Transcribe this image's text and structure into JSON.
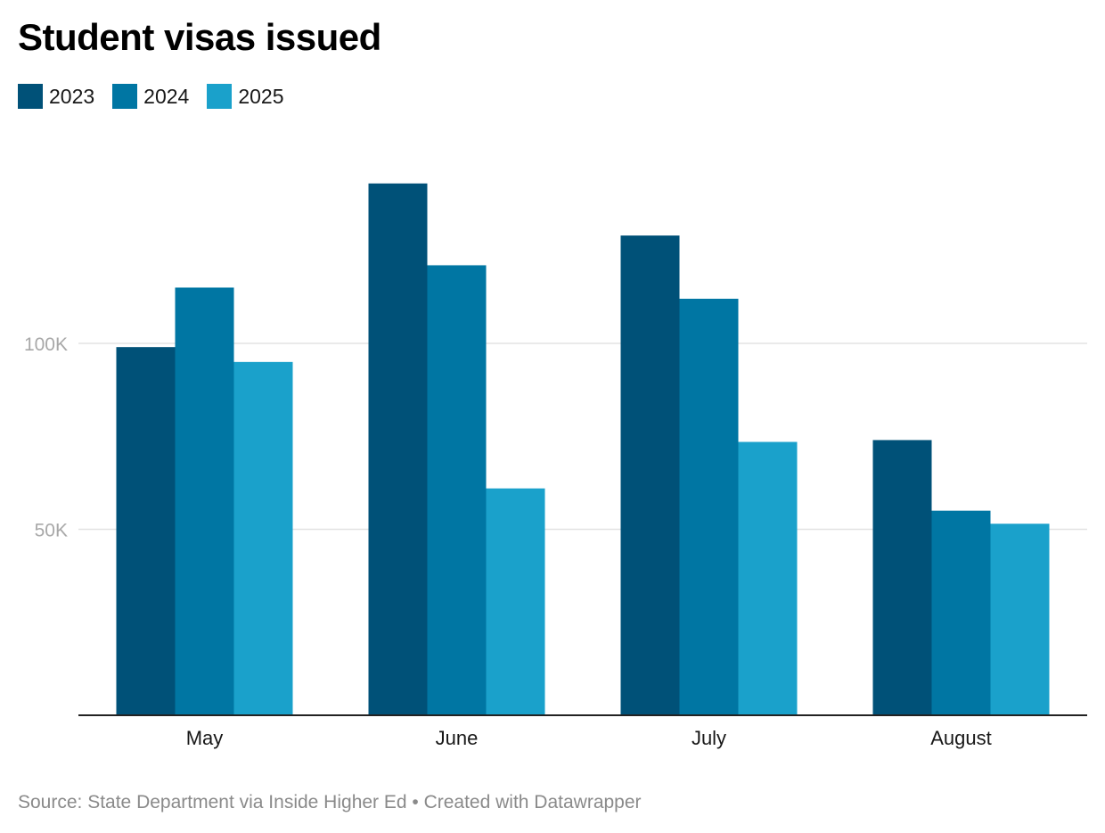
{
  "chart_data": {
    "type": "bar",
    "title": "Student visas issued",
    "categories": [
      "May",
      "June",
      "July",
      "August"
    ],
    "series": [
      {
        "name": "2023",
        "color": "#005178",
        "values": [
          99000,
          143000,
          129000,
          74000
        ]
      },
      {
        "name": "2024",
        "color": "#0076a3",
        "values": [
          115000,
          121000,
          112000,
          55000
        ]
      },
      {
        "name": "2025",
        "color": "#1aa1cb",
        "values": [
          95000,
          61000,
          73500,
          51500
        ]
      }
    ],
    "y_ticks": [
      {
        "value": 50000,
        "label": "50K"
      },
      {
        "value": 100000,
        "label": "100K"
      }
    ],
    "ylim": [
      0,
      160000
    ],
    "xlabel": "",
    "ylabel": "",
    "grid": true,
    "legend_position": "top-left"
  },
  "footer": {
    "text": "Source: State Department via Inside Higher Ed • Created with Datawrapper"
  }
}
